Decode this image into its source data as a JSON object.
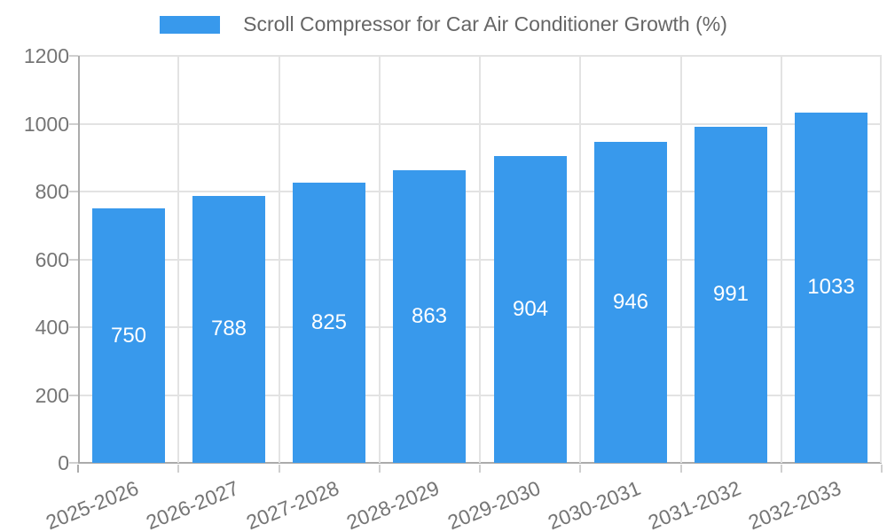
{
  "chart_data": {
    "type": "bar",
    "title": "Scroll Compressor for Car Air Conditioner Growth (%)",
    "categories": [
      "2025-2026",
      "2026-2027",
      "2027-2028",
      "2028-2029",
      "2029-2030",
      "2030-2031",
      "2031-2032",
      "2032-2033"
    ],
    "values": [
      750,
      788,
      825,
      863,
      904,
      946,
      991,
      1033
    ],
    "xlabel": "",
    "ylabel": "",
    "ylim": [
      0,
      1200
    ],
    "yticks": [
      0,
      200,
      400,
      600,
      800,
      1000,
      1200
    ],
    "grid": true,
    "legend_position": "top-center",
    "value_labels": "inside-center",
    "colors": {
      "bar": "#3899EC",
      "value_label": "#FFFFFF",
      "axis_line": "#ABABAB",
      "gridline": "#E3E3E3",
      "tick_mark": "#CFCFCF",
      "tick_label": "#757575",
      "legend_text": "#666666",
      "background": "#FFFFFF"
    }
  }
}
